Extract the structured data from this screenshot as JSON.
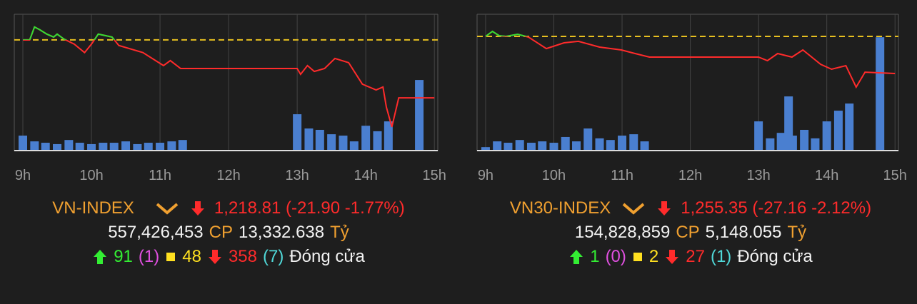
{
  "chart_data": [
    {
      "type": "line",
      "title": "VN-INDEX",
      "price_label": "1,218.81 (-21.90 -1.77%)",
      "summary": {
        "volume": "557,426,453",
        "volume_unit": "CP",
        "value": "13,332.638",
        "value_unit": "Tỷ",
        "advances": "91",
        "ceiling": "(1)",
        "unchanged": "48",
        "declines": "358",
        "floor": "(7)",
        "status": "Đóng cửa"
      },
      "x": [
        9.0,
        9.1,
        9.17,
        9.25,
        9.35,
        9.45,
        9.5,
        9.6,
        9.75,
        9.9,
        10.0,
        10.1,
        10.3,
        10.4,
        10.75,
        11.05,
        11.15,
        11.3,
        11.5,
        13.0,
        13.05,
        13.15,
        13.25,
        13.4,
        13.55,
        13.75,
        13.95,
        14.15,
        14.25,
        14.3,
        14.38,
        14.48,
        15.0
      ],
      "values": [
        1240.7,
        1240.7,
        1245.6,
        1244.5,
        1242.9,
        1241.8,
        1242.9,
        1241.0,
        1239.1,
        1235.9,
        1239.1,
        1242.9,
        1241.8,
        1238.6,
        1235.9,
        1231.0,
        1232.9,
        1229.9,
        1229.9,
        1229.9,
        1227.7,
        1231.0,
        1228.8,
        1229.9,
        1233.7,
        1232.1,
        1224.0,
        1221.8,
        1222.9,
        1215.3,
        1207.8,
        1218.8,
        1218.8
      ],
      "color": "#ff2b2b",
      "above_color": "#33dd33",
      "reference_value": 1240.71,
      "reference_color": "#e8c020",
      "xlim": [
        8.875,
        15.05
      ],
      "ylim": [
        1198.6,
        1250.4
      ],
      "xticks": [
        {
          "value": 9,
          "label": "9h"
        },
        {
          "value": 10,
          "label": "10h"
        },
        {
          "value": 11,
          "label": "11h"
        },
        {
          "value": 12,
          "label": "12h"
        },
        {
          "value": 13,
          "label": "13h"
        },
        {
          "value": 14,
          "label": "14h"
        },
        {
          "value": 15,
          "label": "15h"
        }
      ],
      "grid": true,
      "volume": {
        "x": [
          9.0,
          9.17,
          9.33,
          9.5,
          9.67,
          9.83,
          10.0,
          10.17,
          10.33,
          10.5,
          10.67,
          10.83,
          11.0,
          11.17,
          11.33,
          13.0,
          13.17,
          13.33,
          13.5,
          13.67,
          13.83,
          14.0,
          14.17,
          14.33,
          14.78
        ],
        "values": [
          5.2,
          3.1,
          2.6,
          2.1,
          3.6,
          2.6,
          2.1,
          2.6,
          2.6,
          3.1,
          2.1,
          2.6,
          2.6,
          3.1,
          3.6,
          13.0,
          7.8,
          7.3,
          5.7,
          5.2,
          3.1,
          8.8,
          6.8,
          10.4,
          25.5
        ],
        "color": "#4a7fd0"
      },
      "y2lim": [
        0,
        50
      ]
    },
    {
      "type": "line",
      "title": "VN30-INDEX",
      "price_label": "1,255.35 (-27.16 -2.12%)",
      "summary": {
        "volume": "154,828,859",
        "volume_unit": "CP",
        "value": "5,148.055",
        "value_unit": "Tỷ",
        "advances": "1",
        "ceiling": "(0)",
        "unchanged": "2",
        "declines": "27",
        "floor": "(1)",
        "status": "Đóng cửa"
      },
      "x": [
        9.0,
        9.1,
        9.2,
        9.3,
        9.47,
        9.63,
        9.89,
        10.15,
        10.36,
        10.67,
        10.99,
        11.19,
        11.4,
        11.5,
        13.0,
        13.13,
        13.28,
        13.49,
        13.65,
        13.91,
        14.07,
        14.28,
        14.43,
        14.56,
        15.0
      ],
      "values": [
        1282.5,
        1286.2,
        1283.0,
        1282.5,
        1284.1,
        1282.0,
        1273.6,
        1277.8,
        1278.9,
        1274.7,
        1272.6,
        1270.0,
        1267.4,
        1267.4,
        1267.4,
        1264.8,
        1270.0,
        1267.4,
        1272.6,
        1262.1,
        1258.5,
        1261.1,
        1245.4,
        1256.4,
        1255.4
      ],
      "color": "#ff2b2b",
      "above_color": "#33dd33",
      "reference_value": 1282.51,
      "reference_color": "#e8c020",
      "xlim": [
        8.875,
        15.05
      ],
      "ylim": [
        1198.5,
        1298.7
      ],
      "xticks": [
        {
          "value": 9,
          "label": "9h"
        },
        {
          "value": 10,
          "label": "10h"
        },
        {
          "value": 11,
          "label": "11h"
        },
        {
          "value": 12,
          "label": "12h"
        },
        {
          "value": 13,
          "label": "13h"
        },
        {
          "value": 14,
          "label": "14h"
        },
        {
          "value": 15,
          "label": "15h"
        }
      ],
      "grid": true,
      "volume": {
        "x": [
          9.0,
          9.17,
          9.33,
          9.5,
          9.67,
          9.83,
          10.0,
          10.17,
          10.33,
          10.5,
          10.67,
          10.83,
          11.0,
          11.17,
          11.33,
          13.0,
          13.17,
          13.33,
          13.44,
          13.5,
          13.67,
          13.83,
          14.0,
          14.17,
          14.33,
          14.78
        ],
        "values": [
          1.0,
          3.1,
          2.6,
          3.6,
          2.6,
          3.1,
          2.6,
          4.7,
          3.1,
          7.8,
          4.2,
          3.6,
          5.2,
          5.7,
          3.1,
          10.4,
          4.2,
          6.2,
          19.5,
          5.2,
          7.3,
          4.2,
          10.4,
          14.3,
          16.9,
          41.1
        ],
        "color": "#4a7fd0"
      },
      "y2lim": [
        0,
        50
      ]
    }
  ]
}
